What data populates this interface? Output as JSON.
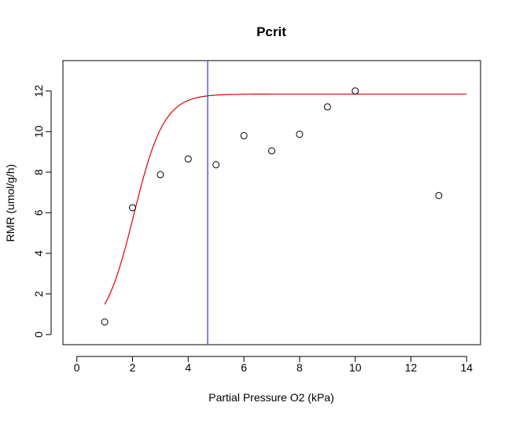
{
  "chart_data": {
    "type": "scatter",
    "title": "Pcrit",
    "xlabel": "Partial Pressure O2 (kPa)",
    "ylabel": "RMR (umol/g/h)",
    "xlim": [
      -0.5,
      14.5
    ],
    "ylim": [
      -0.5,
      13.5
    ],
    "x_ticks": [
      0,
      2,
      4,
      6,
      8,
      10,
      12,
      14
    ],
    "y_ticks": [
      0,
      2,
      4,
      6,
      8,
      10,
      12
    ],
    "grid": false,
    "points": {
      "x": [
        1,
        2,
        3,
        4,
        5,
        6,
        7,
        8,
        9,
        10,
        13
      ],
      "y": [
        0.62,
        6.25,
        7.88,
        8.65,
        8.37,
        9.8,
        9.05,
        9.87,
        11.22,
        12.0,
        6.85
      ]
    },
    "fit_curve": {
      "color": "#e00000",
      "x_range": [
        1,
        14
      ],
      "asymptote": 11.85,
      "midpoint": 2.05,
      "rate": 1.85
    },
    "pcrit_line": {
      "x": 4.7,
      "color": "#3333dd"
    }
  }
}
